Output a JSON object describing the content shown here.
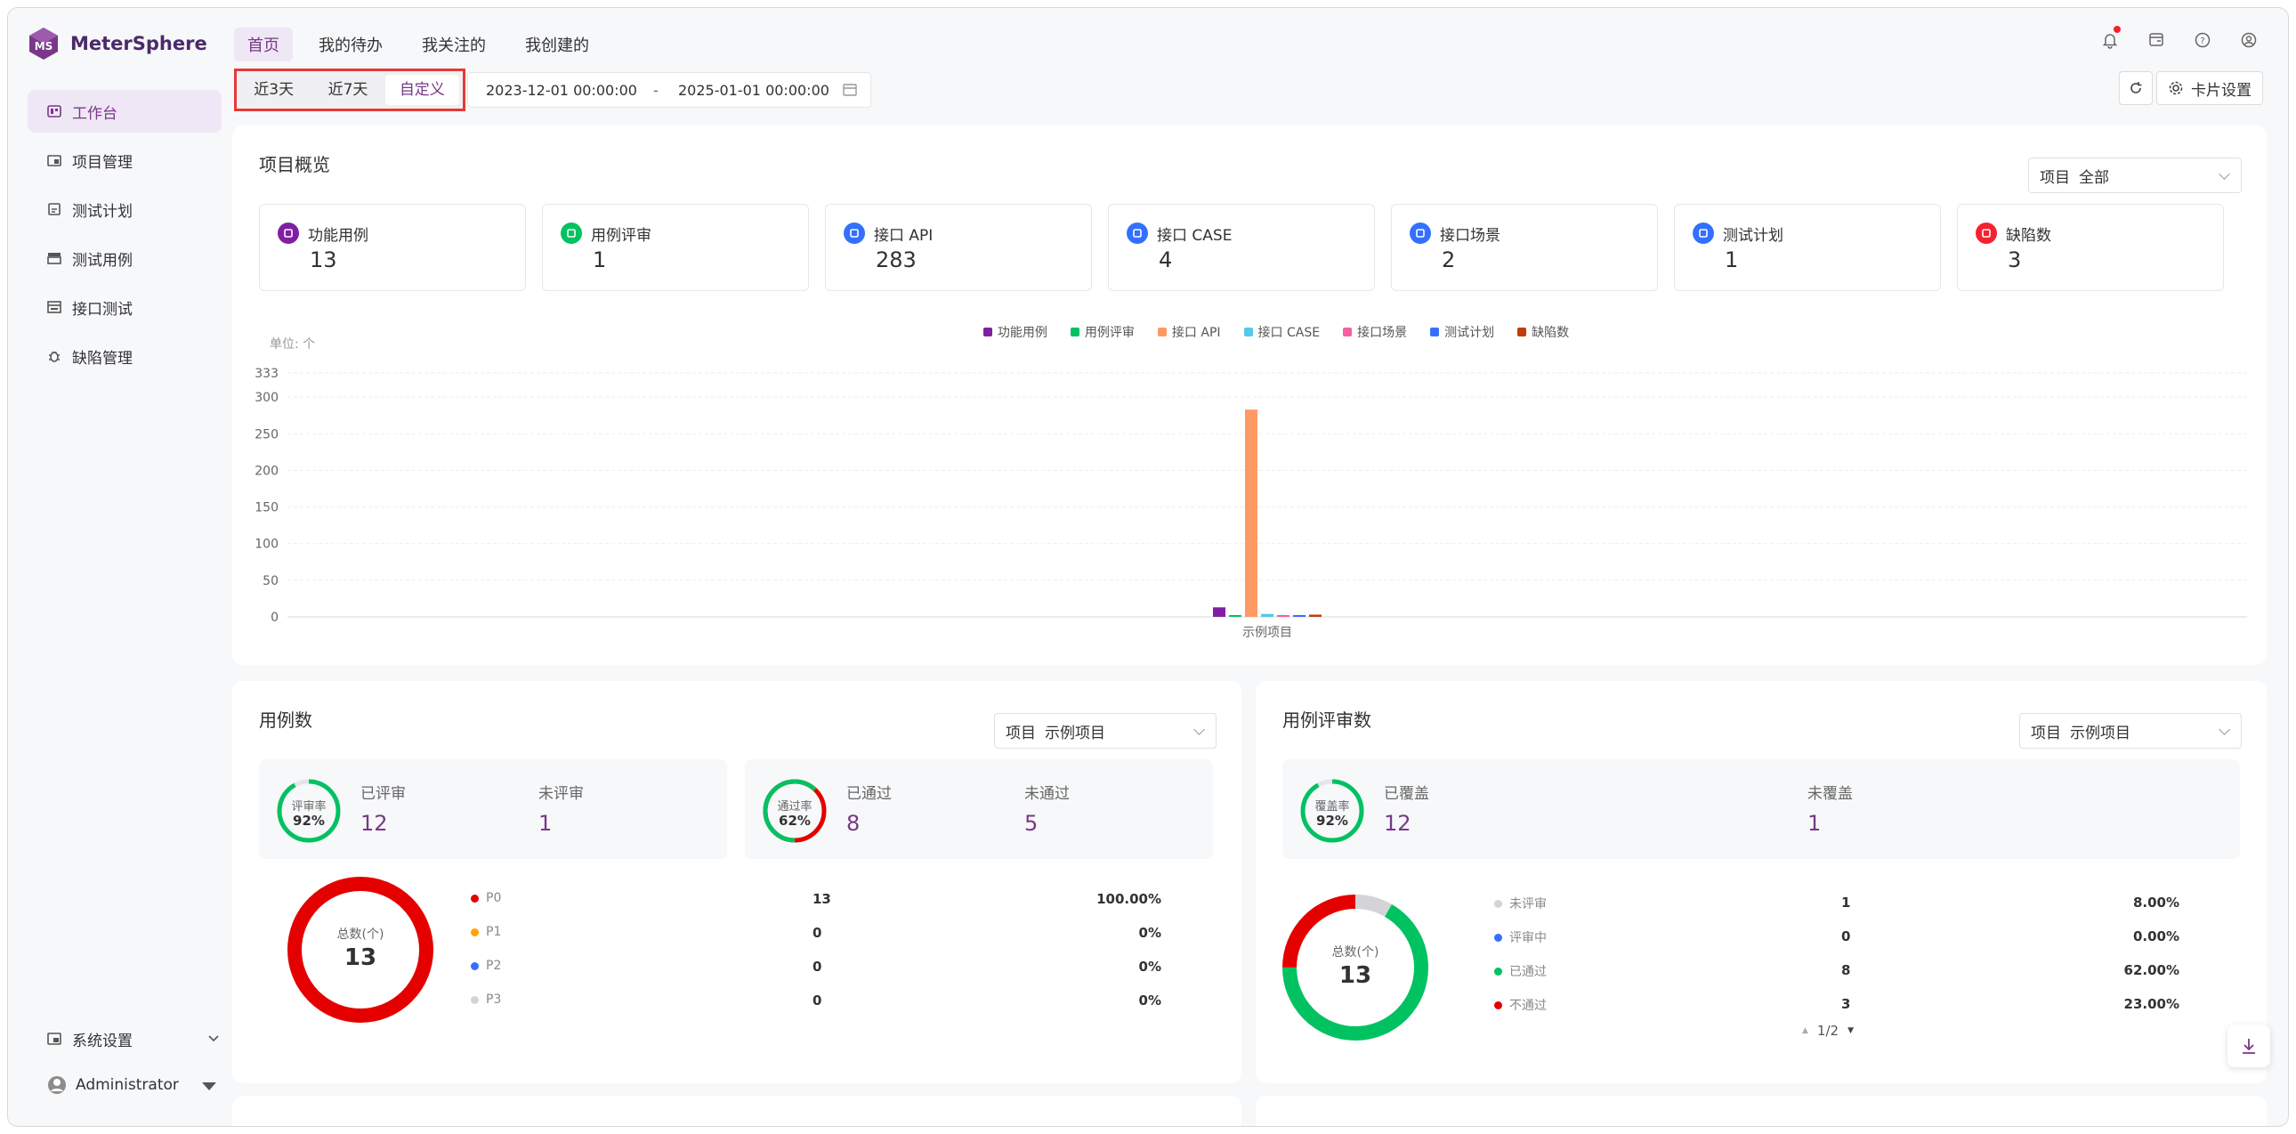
{
  "app": {
    "name": "MeterSphere"
  },
  "sidebar": {
    "items": [
      {
        "label": "工作台",
        "icon": "dashboard-icon",
        "active": true
      },
      {
        "label": "项目管理",
        "icon": "project-icon"
      },
      {
        "label": "测试计划",
        "icon": "test-plan-icon"
      },
      {
        "label": "测试用例",
        "icon": "test-case-icon"
      },
      {
        "label": "接口测试",
        "icon": "api-test-icon"
      },
      {
        "label": "缺陷管理",
        "icon": "bug-icon"
      }
    ],
    "system_settings": "系统设置",
    "user": "Administrator"
  },
  "topnav": {
    "tabs": [
      "首页",
      "我的待办",
      "我关注的",
      "我创建的"
    ],
    "active": 0
  },
  "filter": {
    "ranges": [
      "近3天",
      "近7天",
      "自定义"
    ],
    "active_range": 2,
    "start": "2023-12-01 00:00:00",
    "separator": "-",
    "end": "2025-01-01 00:00:00"
  },
  "toolbar": {
    "card_settings": "卡片设置"
  },
  "overview": {
    "title": "项目概览",
    "select_label": "项目",
    "select_value": "全部",
    "stats": [
      {
        "name": "功能用例",
        "value": "13",
        "color": "#811fa3"
      },
      {
        "name": "用例评审",
        "value": "1",
        "color": "#00c261"
      },
      {
        "name": "接口 API",
        "value": "283",
        "color": "#3370ff"
      },
      {
        "name": "接口 CASE",
        "value": "4",
        "color": "#3370ff"
      },
      {
        "name": "接口场景",
        "value": "2",
        "color": "#3370ff"
      },
      {
        "name": "测试计划",
        "value": "1",
        "color": "#3370ff"
      },
      {
        "name": "缺陷数",
        "value": "3",
        "color": "#f5222d"
      }
    ]
  },
  "chart_data": {
    "type": "bar",
    "unit_label": "单位: 个",
    "categories": [
      "示例项目"
    ],
    "yticks": [
      0,
      50,
      100,
      150,
      200,
      250,
      300,
      333
    ],
    "ylim": [
      0,
      333
    ],
    "series": [
      {
        "name": "功能用例",
        "values": [
          13
        ],
        "color": "#811fa3"
      },
      {
        "name": "用例评审",
        "values": [
          1
        ],
        "color": "#00c261"
      },
      {
        "name": "接口 API",
        "values": [
          283
        ],
        "color": "#ff9964"
      },
      {
        "name": "接口 CASE",
        "values": [
          4
        ],
        "color": "#55c9ea"
      },
      {
        "name": "接口场景",
        "values": [
          2
        ],
        "color": "#f560a2"
      },
      {
        "name": "测试计划",
        "values": [
          1
        ],
        "color": "#3370ff"
      },
      {
        "name": "缺陷数",
        "values": [
          3
        ],
        "color": "#c23b0a"
      }
    ],
    "legend": "top-center",
    "grid": true
  },
  "case_panel": {
    "title": "用例数",
    "select_label": "项目",
    "select_value": "示例项目",
    "review": {
      "ring_label": "评审率",
      "ring_pct": "92%",
      "pct": 0.92,
      "k1": "已评审",
      "v1": "12",
      "k2": "未评审",
      "v2": "1"
    },
    "pass": {
      "ring_label": "通过率",
      "ring_pct": "62%",
      "pct": 0.62,
      "k1": "已通过",
      "v1": "8",
      "k2": "未通过",
      "v2": "5"
    },
    "donut": {
      "label": "总数(个)",
      "total": "13"
    },
    "rows": [
      {
        "name": "P0",
        "count": "13",
        "pct": "100.00%",
        "color": "#e50000"
      },
      {
        "name": "P1",
        "count": "0",
        "pct": "0%",
        "color": "#ffa200"
      },
      {
        "name": "P2",
        "count": "0",
        "pct": "0%",
        "color": "#3370ff"
      },
      {
        "name": "P3",
        "count": "0",
        "pct": "0%",
        "color": "#d4d4d8"
      }
    ]
  },
  "review_panel": {
    "title": "用例评审数",
    "select_label": "项目",
    "select_value": "示例项目",
    "coverage": {
      "ring_label": "覆盖率",
      "ring_pct": "92%",
      "pct": 0.92,
      "k1": "已覆盖",
      "v1": "12",
      "k2": "未覆盖",
      "v2": "1"
    },
    "donut": {
      "label": "总数(个)",
      "total": "13"
    },
    "rows": [
      {
        "name": "未评审",
        "count": "1",
        "pct": "8.00%",
        "color": "#d4d4d8"
      },
      {
        "name": "评审中",
        "count": "0",
        "pct": "0.00%",
        "color": "#3370ff"
      },
      {
        "name": "已通过",
        "count": "8",
        "pct": "62.00%",
        "color": "#00c261"
      },
      {
        "name": "不通过",
        "count": "3",
        "pct": "23.00%",
        "color": "#e50000"
      }
    ],
    "pagination": "1/2"
  }
}
